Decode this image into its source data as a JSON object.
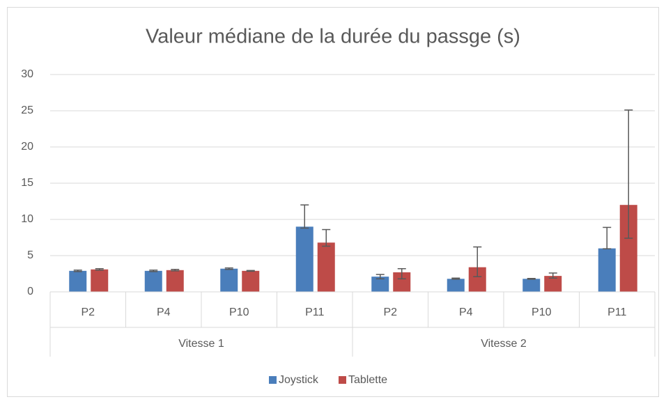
{
  "chart_data": {
    "type": "bar",
    "title": "Valeur médiane de la durée du passge (s)",
    "categories": [
      "P2",
      "P4",
      "P10",
      "P11",
      "P2",
      "P4",
      "P10",
      "P11"
    ],
    "group_labels": [
      "Vitesse 1",
      "Vitesse 2"
    ],
    "series": [
      {
        "name": "Joystick",
        "color": "#4a7ebb",
        "values": [
          2.9,
          2.9,
          3.2,
          9.0,
          2.1,
          1.8,
          1.8,
          6.0
        ],
        "error_plus": [
          0.1,
          0.1,
          0.1,
          3.0,
          0.3,
          0.1,
          0.05,
          2.9
        ],
        "error_minus": [
          0.1,
          0.1,
          0.1,
          0.2,
          0.3,
          0.05,
          0.05,
          0.05
        ]
      },
      {
        "name": "Tablette",
        "color": "#be4b48",
        "values": [
          3.1,
          3.0,
          2.9,
          6.8,
          2.7,
          3.4,
          2.2,
          12.0
        ],
        "error_plus": [
          0.1,
          0.1,
          0.05,
          1.8,
          0.5,
          2.8,
          0.4,
          13.1
        ],
        "error_minus": [
          0.1,
          0.1,
          0.05,
          0.5,
          0.9,
          1.3,
          0.3,
          4.6
        ]
      }
    ],
    "ylim": [
      0,
      30
    ],
    "yticks": [
      0,
      5,
      10,
      15,
      20,
      25,
      30
    ],
    "grid": true,
    "legend": "bottom"
  }
}
